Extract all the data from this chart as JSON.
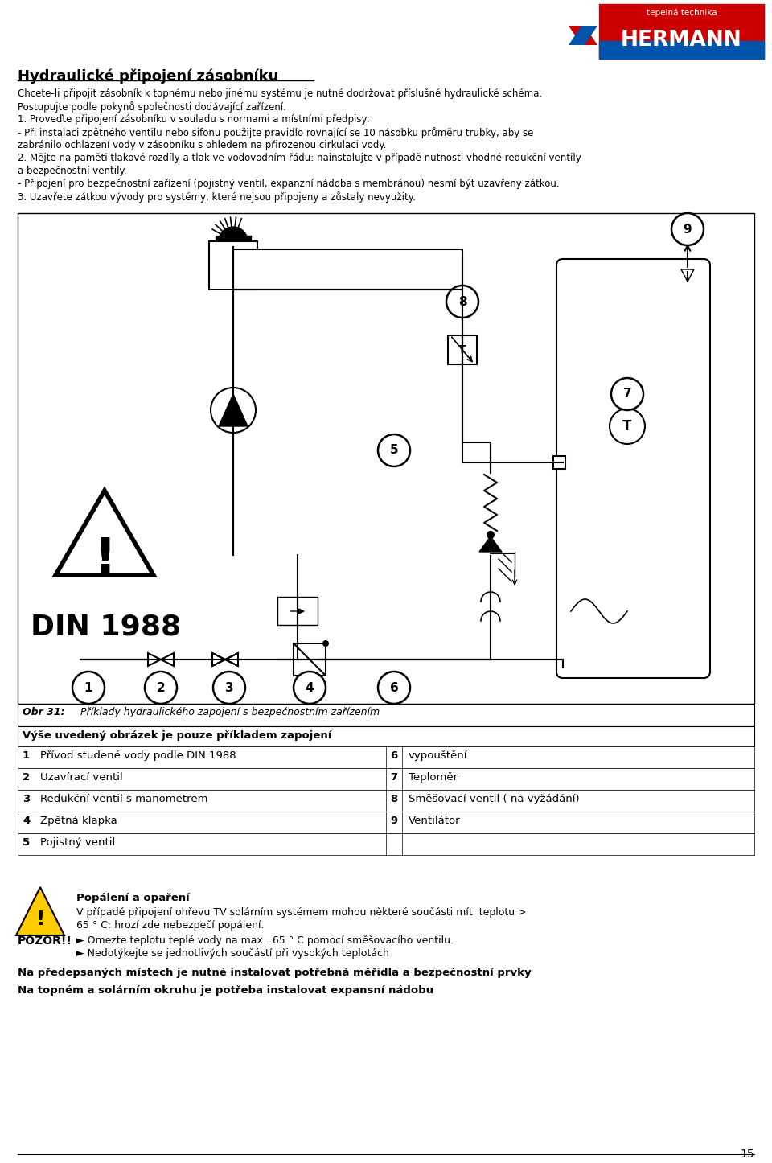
{
  "title": "Hydraulické připojení zásobníku",
  "intro_lines": [
    "Chcete-li připojit zásobník k topnému nebo jinému systému je nutné dodržovat příslušné hydraulické schéma.",
    "Postupujte podle pokynů společnosti dodávající zařízení.",
    "1. Proveďte připojení zásobníku v souladu s normami a místními předpisy:",
    "- Při instalaci zpětného ventilu nebo sifonu použijte pravidlo rovnající se 10 násobku průměru trubky, aby se",
    "zabránilo ochlazení vody v zásobníku s ohledem na přirozenou cirkulaci vody.",
    "2. Mějte na paměti tlakové rozdíly a tlak ve vodovodním řádu: nainstalujte v případě nutnosti vhodné redukční ventily",
    "a bezpečnostní ventily.",
    "- Připojení pro bezpečnostní zařízení (pojistný ventil, expanzní nádoba s membránou) nesmí být uzavřeny zátkou.",
    "3. Uzavřete zátkou vývody pro systémy, které nejsou připojeny a zůstaly nevyužity."
  ],
  "caption_label": "Obr 31:",
  "caption_text": "Příklady hydraulického zapojení s bezpečnostním zařízením",
  "table_header": "Výše uvedený obrázek je pouze příkladem zapojení",
  "table_rows": [
    [
      "1",
      "Přívod studené vody podle DIN 1988",
      "6",
      "vypouštění"
    ],
    [
      "2",
      "Uzavírací ventil",
      "7",
      "Teploměr"
    ],
    [
      "3",
      "Redukční ventil s manometrem",
      "8",
      "Směšovací ventil ( na vyžádání)"
    ],
    [
      "4",
      "Zpětná klapka",
      "9",
      "Ventilátor"
    ],
    [
      "5",
      "Pojistný ventil",
      "",
      ""
    ]
  ],
  "warning_title": "Popálení a opaření",
  "warning_text1": "V případě připojení ohřevu TV solárním systémem ",
  "warning_bold": "mohou některé",
  "warning_text2": " součásti mít  teplotu >",
  "warning_text3": "65 ° C: hrozí zde nebezpečí popálení.",
  "pozor_label": "POZOR!!",
  "pozor_lines": [
    "► Omezte teplotu teplé vody na max.. 65 ° C pomocí směšovacího ventilu.",
    "► Nedotýkejte se jednotlivých součástí při vysokých teplotách"
  ],
  "footer_lines": [
    "Na předepsaných místech je nutné instalovat potřebná měřidla a bezpečnostní prvky",
    "Na topném a solárním okruhu je potřeba instalovat expansní nádobu"
  ],
  "page_number": "15",
  "bg_color": "#ffffff"
}
